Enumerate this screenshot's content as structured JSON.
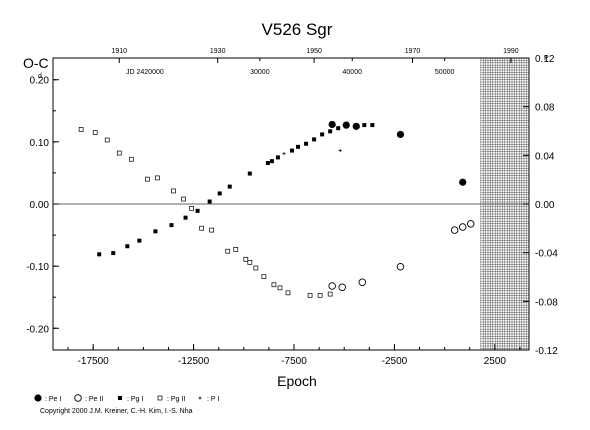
{
  "chart_data": {
    "type": "scatter",
    "title": "V526  Sgr",
    "xlabel": "Epoch",
    "ylabel": "O-C",
    "ylabel_unit": "d",
    "right_ylabel_unit": "P",
    "jd_label": "JD 2420000",
    "xlim": [
      -19500,
      4200
    ],
    "ylim": [
      -0.235,
      0.235
    ],
    "right_ylim": [
      -0.12,
      0.12
    ],
    "bottom_ticks": {
      "values": [
        -17500,
        -12500,
        -7500,
        -2500,
        2500
      ],
      "labels": [
        "-17500",
        "-12500",
        "-7500",
        "-2500",
        "2500"
      ]
    },
    "left_ticks": {
      "values": [
        0.2,
        0.1,
        0.0,
        -0.1,
        -0.2
      ],
      "labels": [
        "0.20",
        "0.10",
        "0.00",
        "-0.10",
        "-0.20"
      ]
    },
    "right_ticks": {
      "values": [
        0.12,
        0.08,
        0.04,
        0.0,
        -0.04,
        -0.08,
        -0.12
      ],
      "labels": [
        "0.12",
        "0.08",
        "0.04",
        "0.00",
        "-0.04",
        "-0.08",
        "-0.12"
      ]
    },
    "year_ticks": {
      "values": [
        -16200,
        -11300,
        -6500,
        -1600,
        3300
      ],
      "labels": [
        "1910",
        "1930",
        "1950",
        "1970",
        "1990"
      ]
    },
    "jd_ticks": {
      "values": [
        -9200,
        -4600,
        0
      ],
      "labels": [
        "30000",
        "40000",
        "50000"
      ]
    },
    "hatched_region_x": [
      1800,
      4200
    ],
    "zero_line": true,
    "series": [
      {
        "name": "Pe I",
        "marker": "filled-circle",
        "points": [
          [
            -5600,
            0.128
          ],
          [
            -4900,
            0.127
          ],
          [
            -4400,
            0.125
          ],
          [
            -2200,
            0.112
          ],
          [
            900,
            0.035
          ]
        ]
      },
      {
        "name": "Pe II",
        "marker": "open-circle",
        "points": [
          [
            -5600,
            -0.132
          ],
          [
            -5100,
            -0.134
          ],
          [
            -4100,
            -0.126
          ],
          [
            -2200,
            -0.101
          ],
          [
            500,
            -0.042
          ],
          [
            900,
            -0.037
          ],
          [
            1300,
            -0.032
          ]
        ]
      },
      {
        "name": "Pg I",
        "marker": "filled-square",
        "points": [
          [
            -17200,
            -0.081
          ],
          [
            -16500,
            -0.079
          ],
          [
            -15800,
            -0.068
          ],
          [
            -15200,
            -0.059
          ],
          [
            -14400,
            -0.044
          ],
          [
            -13600,
            -0.034
          ],
          [
            -12900,
            -0.022
          ],
          [
            -12300,
            -0.011
          ],
          [
            -11700,
            0.004
          ],
          [
            -11200,
            0.017
          ],
          [
            -10700,
            0.028
          ],
          [
            -9700,
            0.049
          ],
          [
            -8800,
            0.066
          ],
          [
            -8600,
            0.069
          ],
          [
            -8300,
            0.075
          ],
          [
            -7600,
            0.086
          ],
          [
            -7300,
            0.092
          ],
          [
            -6900,
            0.097
          ],
          [
            -6500,
            0.104
          ],
          [
            -6100,
            0.112
          ],
          [
            -5700,
            0.117
          ],
          [
            -5300,
            0.122
          ],
          [
            -4900,
            0.125
          ],
          [
            -4400,
            0.126
          ],
          [
            -4000,
            0.127
          ],
          [
            -3600,
            0.127
          ]
        ]
      },
      {
        "name": "Pg II",
        "marker": "open-square",
        "points": [
          [
            -18100,
            0.12
          ],
          [
            -17400,
            0.115
          ],
          [
            -16800,
            0.103
          ],
          [
            -16200,
            0.082
          ],
          [
            -15600,
            0.072
          ],
          [
            -14800,
            0.04
          ],
          [
            -14300,
            0.042
          ],
          [
            -13500,
            0.021
          ],
          [
            -13000,
            0.008
          ],
          [
            -12600,
            -0.007
          ],
          [
            -12100,
            -0.039
          ],
          [
            -11600,
            -0.042
          ],
          [
            -10800,
            -0.076
          ],
          [
            -10400,
            -0.073
          ],
          [
            -9900,
            -0.089
          ],
          [
            -9700,
            -0.094
          ],
          [
            -9400,
            -0.103
          ],
          [
            -9000,
            -0.117
          ],
          [
            -8500,
            -0.13
          ],
          [
            -8200,
            -0.135
          ],
          [
            -7800,
            -0.143
          ],
          [
            -6700,
            -0.147
          ],
          [
            -6200,
            -0.147
          ],
          [
            -5700,
            -0.145
          ]
        ]
      },
      {
        "name": "P I",
        "marker": "plus",
        "points": [
          [
            -8000,
            0.081
          ],
          [
            -5200,
            0.086
          ]
        ]
      }
    ]
  },
  "legend_items": [
    {
      "label": ": Pe I",
      "marker": "filled-circle"
    },
    {
      "label": ": Pe II",
      "marker": "open-circle"
    },
    {
      "label": ": Pg I",
      "marker": "filled-square"
    },
    {
      "label": ": Pg II",
      "marker": "open-square"
    },
    {
      "label": ": P I",
      "marker": "plus"
    }
  ],
  "copyright": "Copyright 2000 J.M. Kreiner, C.-H. Kim, I.-S. Nha"
}
